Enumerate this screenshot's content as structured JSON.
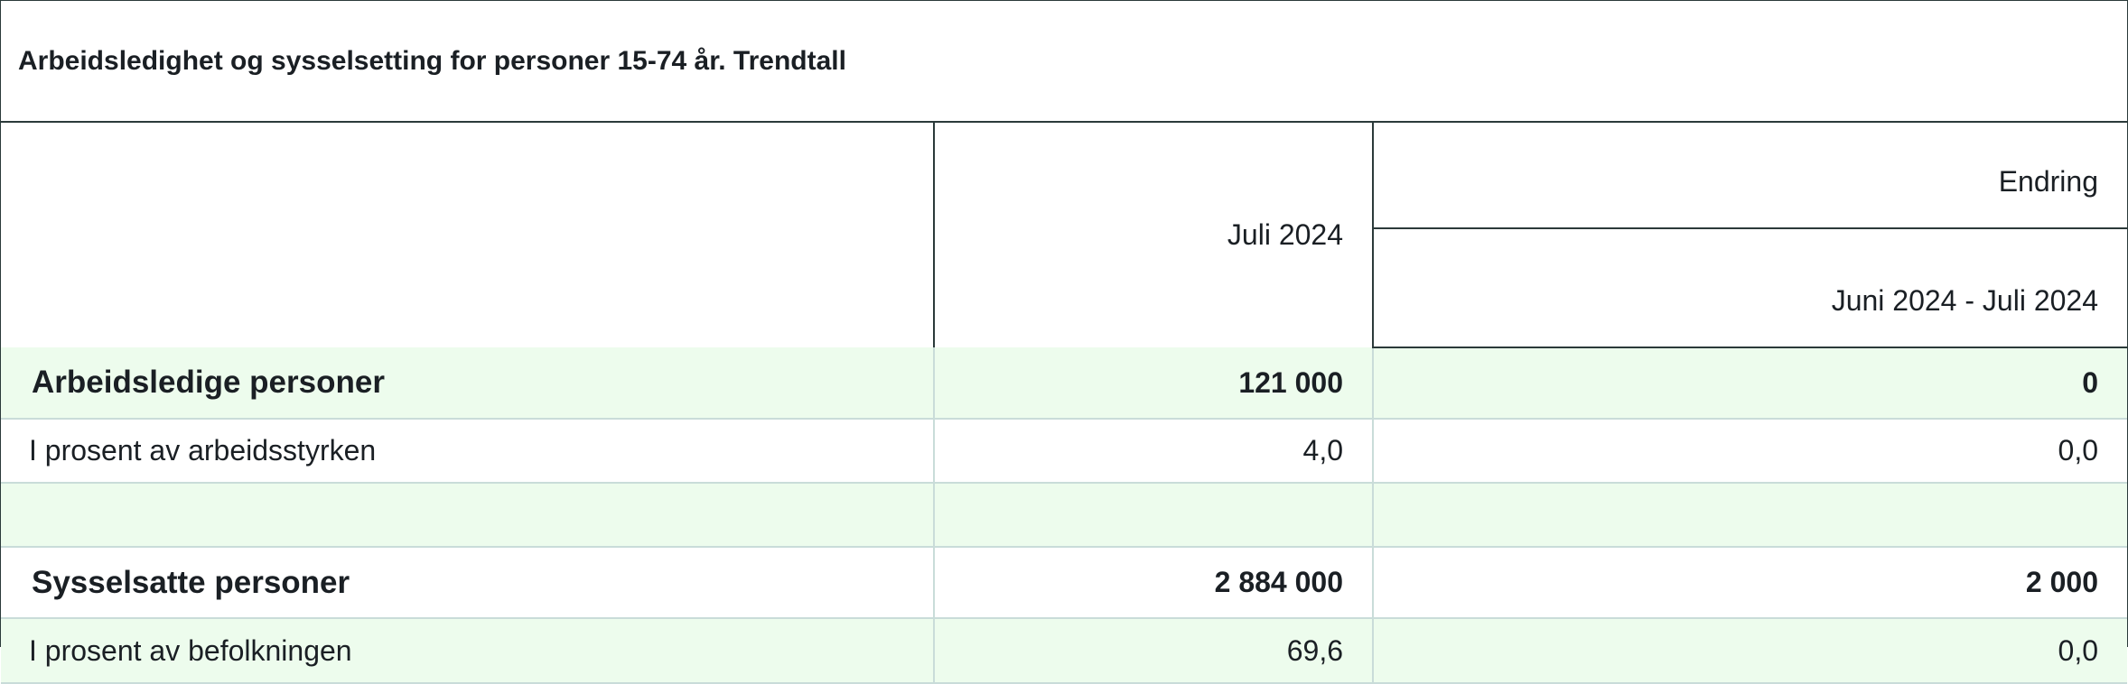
{
  "table": {
    "caption": "Arbeidsledighet og sysselsetting for personer 15-74 år. Trendtall",
    "header": {
      "col_month": "Juli 2024",
      "col_change_group": "Endring",
      "col_change_period": "Juni 2024 - Juli 2024"
    },
    "rows": [
      {
        "label": "Arbeidsledige personer",
        "value": "121 000",
        "change": "0"
      },
      {
        "label": "I prosent av arbeidsstyrken",
        "value": "4,0",
        "change": "0,0"
      },
      {
        "label": "",
        "value": "",
        "change": ""
      },
      {
        "label": "Sysselsatte personer",
        "value": "2 884 000",
        "change": "2 000"
      },
      {
        "label": "I prosent av befolkningen",
        "value": "69,6",
        "change": "0,0"
      }
    ]
  }
}
